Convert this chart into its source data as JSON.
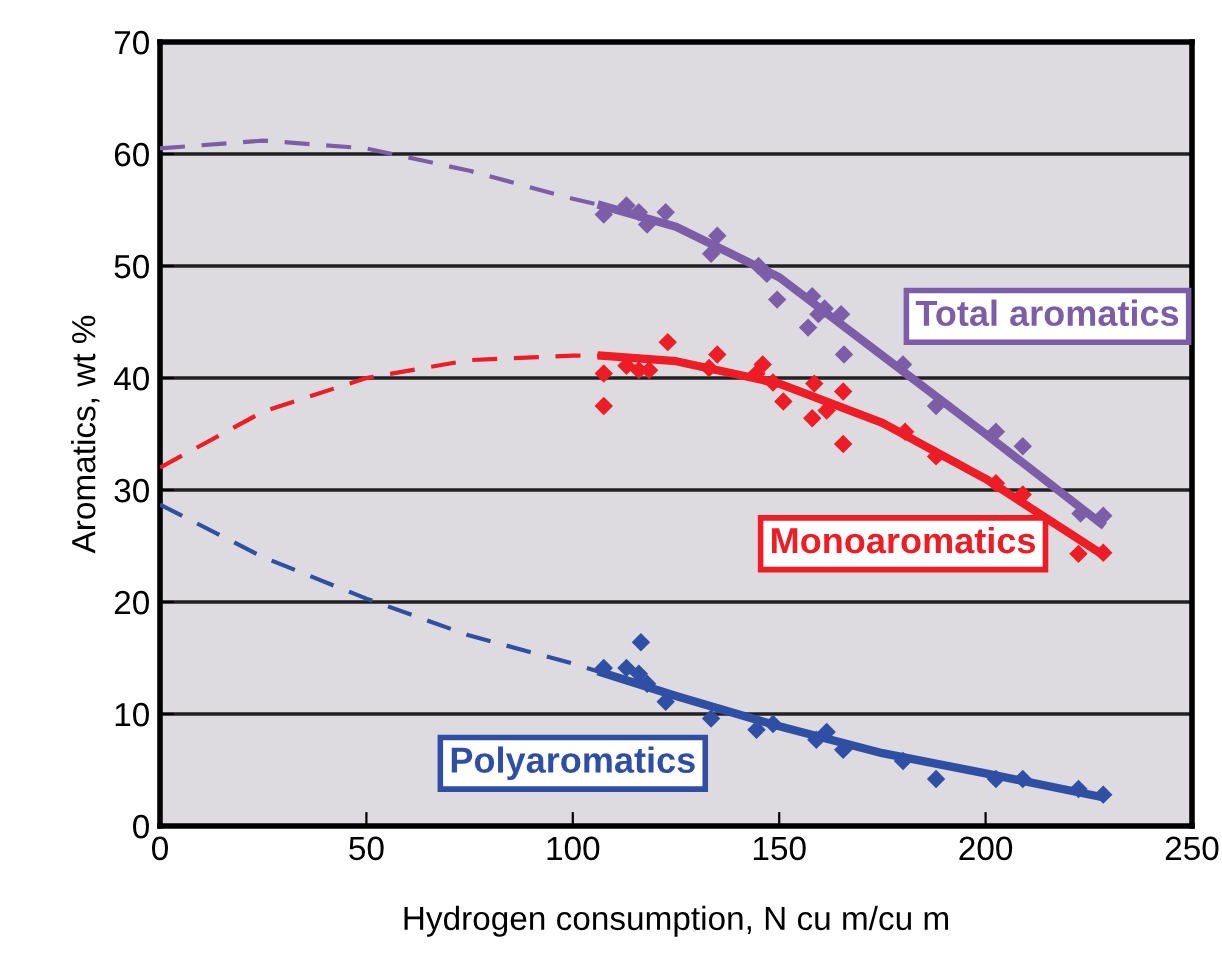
{
  "chart_data": {
    "type": "scatter",
    "xlabel": "Hydrogen consumption, N cu m/cu m",
    "ylabel": "Aromatics, wt %",
    "xlim": [
      0,
      250
    ],
    "ylim": [
      0,
      70
    ],
    "xticks": [
      0,
      50,
      100,
      150,
      200,
      250
    ],
    "yticks": [
      0,
      10,
      20,
      30,
      40,
      50,
      60,
      70
    ],
    "grid": "y",
    "legend": false,
    "series": [
      {
        "name": "Total aromatics",
        "marker": "diamond",
        "color": "#7b5ea7",
        "x": [
          107.5,
          113,
          116,
          118,
          122.5,
          135,
          133.5,
          145,
          147,
          149.5,
          158,
          157,
          159.5,
          161,
          165,
          165.7,
          180,
          188,
          202.5,
          209,
          223,
          228.5
        ],
        "values": [
          54.6,
          55.4,
          54.8,
          53.7,
          54.8,
          52.7,
          51.1,
          50,
          49.3,
          47,
          47.3,
          44.5,
          45.7,
          46.2,
          45.7,
          42.1,
          41.2,
          37.5,
          35.2,
          33.9,
          27.9,
          27.7
        ]
      },
      {
        "name": "Monoaromatics",
        "marker": "diamond",
        "color": "#ee1c25",
        "x": [
          107.5,
          107.5,
          113,
          116,
          118.5,
          123,
          133,
          135,
          144.5,
          146,
          148.5,
          151,
          158.5,
          158,
          161.5,
          165.5,
          165.5,
          180.5,
          188,
          202.5,
          209,
          222.5,
          228.5
        ],
        "values": [
          40.4,
          37.5,
          41.1,
          40.7,
          40.7,
          43.2,
          40.9,
          42.1,
          40.4,
          41.2,
          39.6,
          37.9,
          39.5,
          36.4,
          37.1,
          38.8,
          34.1,
          35.2,
          33,
          30.6,
          29.6,
          24.3,
          24.4
        ]
      },
      {
        "name": "Polyaromatics",
        "marker": "diamond",
        "color": "#2e4fa3",
        "x": [
          107.5,
          113,
          116.5,
          116,
          118,
          122.5,
          133.5,
          144.5,
          148.5,
          159,
          161.5,
          165.5,
          180,
          188,
          202.5,
          209,
          222.5,
          228.5
        ],
        "values": [
          14.1,
          14.1,
          16.4,
          13.6,
          12.7,
          11.1,
          9.6,
          8.6,
          9.1,
          7.7,
          8.4,
          6.8,
          5.8,
          4.2,
          4.2,
          4.2,
          3.3,
          2.8
        ]
      },
      {
        "type": "line",
        "line_style": "dashed",
        "color": "#7b5ea7",
        "x": [
          0,
          25,
          50,
          75,
          100,
          107
        ],
        "values": [
          60.5,
          61.2,
          60.5,
          58.5,
          56,
          55.4
        ]
      },
      {
        "type": "line",
        "line_style": "solid",
        "color": "#7b5ea7",
        "x": [
          107,
          125,
          150,
          175,
          200,
          228
        ],
        "values": [
          55.4,
          53.5,
          49,
          42,
          35,
          27
        ]
      },
      {
        "type": "line",
        "line_style": "dashed",
        "color": "#ee1c25",
        "x": [
          0,
          25,
          50,
          75,
          100,
          107
        ],
        "values": [
          32,
          37,
          40,
          41.6,
          42,
          42
        ]
      },
      {
        "type": "line",
        "line_style": "solid",
        "color": "#ee1c25",
        "x": [
          107,
          125,
          150,
          175,
          200,
          228
        ],
        "values": [
          42,
          41.5,
          39.5,
          36,
          31,
          24.3
        ]
      },
      {
        "type": "line",
        "line_style": "dashed",
        "color": "#2e4fa3",
        "x": [
          0,
          25,
          50,
          75,
          100,
          107
        ],
        "values": [
          28.7,
          24,
          20.3,
          17,
          14.5,
          13.7
        ]
      },
      {
        "type": "line",
        "line_style": "solid",
        "color": "#2e4fa3",
        "x": [
          107,
          125,
          150,
          175,
          200,
          228
        ],
        "values": [
          13.7,
          11.6,
          8.9,
          6.5,
          4.7,
          2.6
        ]
      }
    ]
  }
}
